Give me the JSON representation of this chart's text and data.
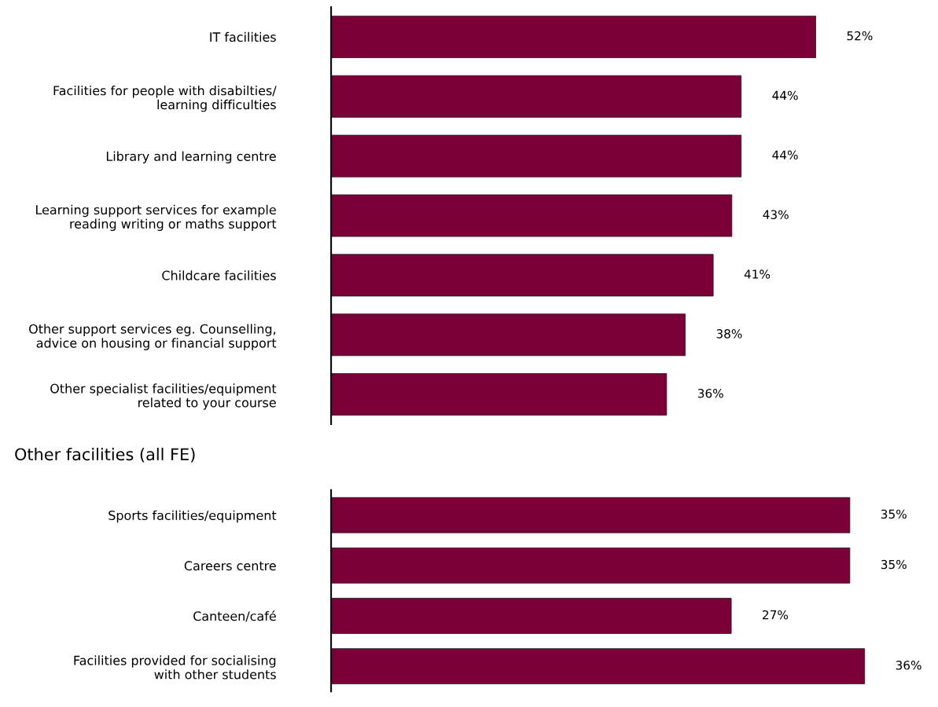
{
  "chart_data": [
    {
      "type": "bar",
      "orientation": "horizontal",
      "data_labels": true,
      "color": "#7b0038",
      "value_labels": [
        "52%",
        "44%",
        "44%",
        "43%",
        "41%",
        "38%",
        "36%"
      ],
      "categories": [
        "IT facilities",
        "Facilities for people with disabilties/\nlearning difficulties",
        "Library and learning centre",
        "Learning support services for example\nreading writing or maths support",
        "Childcare facilities",
        "Other support services eg. Counselling,\nadvice on housing or financial support",
        "Other specialist facilities/equipment\nrelated to your course"
      ],
      "values": [
        52,
        44,
        44,
        43,
        41,
        38,
        36
      ]
    },
    {
      "type": "bar",
      "orientation": "horizontal",
      "data_labels": true,
      "title": "Other facilities (all FE)",
      "color": "#7b0038",
      "value_labels": [
        "35%",
        "35%",
        "27%",
        "36%"
      ],
      "categories": [
        "Sports facilities/equipment",
        "Careers centre",
        "Canteen/café",
        "Facilities provided for socialising\nwith other students"
      ],
      "values": [
        35,
        35,
        27,
        36
      ]
    }
  ]
}
